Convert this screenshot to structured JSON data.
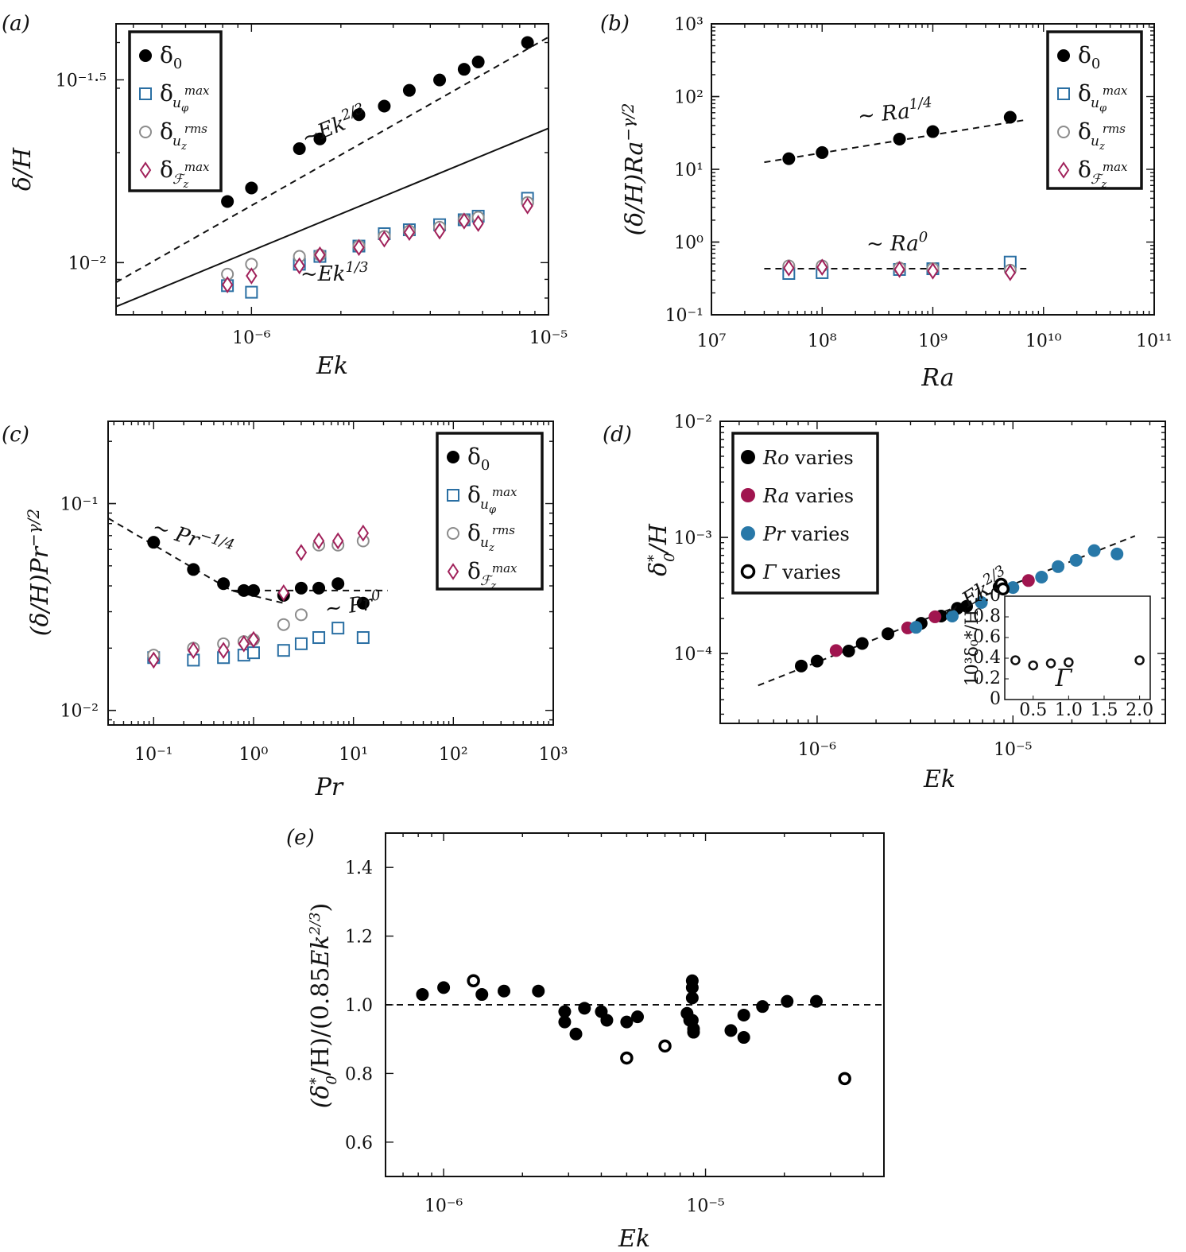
{
  "colors": {
    "black": "#000000",
    "blue": "#2a6fa3",
    "gray": "#8c8c8c",
    "purple": "#a0215a",
    "teal": "#2878a8",
    "crimson": "#a0154f"
  },
  "chart_data": [
    {
      "panel": "(a)",
      "type": "scatter",
      "xscale": "log",
      "yscale": "log",
      "xlabel": "Ek",
      "ylabel": "δ/H",
      "xlim": [
        3.5e-07,
        1e-05
      ],
      "ylim": [
        0.0072,
        0.045
      ],
      "xticks": [
        {
          "v": 1e-06,
          "label": "10⁻⁶"
        },
        {
          "v": 1e-05,
          "label": "10⁻⁵"
        }
      ],
      "yticks": [
        {
          "v": 0.01,
          "label": "10⁻²"
        },
        {
          "v": 0.0316228,
          "label": "10⁻¹·⁵"
        }
      ],
      "legend_position": "top-left",
      "series": [
        {
          "name": "δ0",
          "marker": "filled-circle",
          "color": "#000000",
          "x": [
            8.3e-07,
            1e-06,
            1.45e-06,
            1.7e-06,
            2.3e-06,
            2.8e-06,
            3.4e-06,
            4.3e-06,
            5.2e-06,
            5.8e-06,
            8.5e-06
          ],
          "y": [
            0.0147,
            0.016,
            0.0205,
            0.0218,
            0.0254,
            0.0268,
            0.0296,
            0.0316,
            0.0338,
            0.0354,
            0.04
          ]
        },
        {
          "name": "δ_uφ^max",
          "marker": "square",
          "color": "#2a6fa3",
          "x": [
            8.3e-07,
            1e-06,
            1.45e-06,
            1.7e-06,
            2.3e-06,
            2.8e-06,
            3.4e-06,
            4.3e-06,
            5.2e-06,
            5.8e-06,
            8.5e-06
          ],
          "y": [
            0.00865,
            0.0083,
            0.0099,
            0.0104,
            0.0111,
            0.012,
            0.0123,
            0.0127,
            0.0131,
            0.0134,
            0.015
          ]
        },
        {
          "name": "δ_uz^rms",
          "marker": "open-circle",
          "color": "#8c8c8c",
          "x": [
            8.3e-07,
            1e-06,
            1.45e-06,
            1.7e-06,
            2.3e-06,
            2.8e-06,
            3.4e-06,
            4.3e-06,
            5.2e-06,
            5.8e-06,
            8.5e-06
          ],
          "y": [
            0.0093,
            0.0099,
            0.0104,
            0.0105,
            0.0111,
            0.0118,
            0.0122,
            0.0125,
            0.0131,
            0.0133,
            0.0146
          ]
        },
        {
          "name": "δ_Fz^max",
          "marker": "diamond",
          "color": "#a0215a",
          "x": [
            8.3e-07,
            1e-06,
            1.45e-06,
            1.7e-06,
            2.3e-06,
            2.8e-06,
            3.4e-06,
            4.3e-06,
            5.2e-06,
            5.8e-06,
            8.5e-06
          ],
          "y": [
            0.0087,
            0.0092,
            0.0098,
            0.0105,
            0.011,
            0.0116,
            0.0121,
            0.0122,
            0.013,
            0.0128,
            0.0143
          ]
        }
      ],
      "fits": [
        {
          "label": "~Ek^{2/3}",
          "style": "dashed",
          "x": [
            3.5e-07,
            1e-05
          ],
          "y": [
            0.00883,
            0.0414
          ]
        },
        {
          "label": "~Ek^{1/3}",
          "style": "solid",
          "x": [
            3.5e-07,
            1e-05
          ],
          "y": [
            0.00758,
            0.0233
          ]
        }
      ]
    },
    {
      "panel": "(b)",
      "type": "scatter",
      "xscale": "log",
      "yscale": "log",
      "xlabel": "Ra",
      "ylabel": "(δ/H)Ra^{−γ/2}",
      "xlim": [
        10000000.0,
        100000000000.0
      ],
      "ylim": [
        0.1,
        1000
      ],
      "xticks": [
        {
          "v": 10000000.0,
          "label": "10⁷"
        },
        {
          "v": 100000000.0,
          "label": "10⁸"
        },
        {
          "v": 1000000000.0,
          "label": "10⁹"
        },
        {
          "v": 10000000000.0,
          "label": "10¹⁰"
        },
        {
          "v": 100000000000.0,
          "label": "10¹¹"
        }
      ],
      "yticks": [
        {
          "v": 0.1,
          "label": "10⁻¹"
        },
        {
          "v": 1,
          "label": "10⁰"
        },
        {
          "v": 10,
          "label": "10¹"
        },
        {
          "v": 100,
          "label": "10²"
        },
        {
          "v": 1000,
          "label": "10³"
        }
      ],
      "legend_position": "top-right",
      "series": [
        {
          "name": "δ0",
          "marker": "filled-circle",
          "color": "#000000",
          "x": [
            50000000.0,
            100000000.0,
            500000000.0,
            1000000000.0,
            5000000000.0
          ],
          "y": [
            14,
            17,
            26,
            33,
            52
          ]
        },
        {
          "name": "δ_uφ^max",
          "marker": "square",
          "color": "#2a6fa3",
          "x": [
            50000000.0,
            100000000.0,
            500000000.0,
            1000000000.0,
            5000000000.0
          ],
          "y": [
            0.37,
            0.38,
            0.42,
            0.43,
            0.53
          ]
        },
        {
          "name": "δ_uz^rms",
          "marker": "open-circle",
          "color": "#8c8c8c",
          "x": [
            50000000.0,
            100000000.0,
            500000000.0,
            1000000000.0,
            5000000000.0
          ],
          "y": [
            0.47,
            0.47,
            0.44,
            0.43,
            0.41
          ]
        },
        {
          "name": "δ_Fz^max",
          "marker": "diamond",
          "color": "#a0215a",
          "x": [
            50000000.0,
            100000000.0,
            500000000.0,
            1000000000.0,
            5000000000.0
          ],
          "y": [
            0.44,
            0.45,
            0.42,
            0.4,
            0.38
          ]
        }
      ],
      "fits": [
        {
          "label": "~ Ra^{1/4}",
          "style": "dashed",
          "x": [
            30000000.0,
            7000000000.0
          ],
          "y": [
            12.5,
            48
          ]
        },
        {
          "label": "~ Ra^0",
          "style": "dashed",
          "x": [
            30000000.0,
            7000000000.0
          ],
          "y": [
            0.43,
            0.43
          ]
        }
      ]
    },
    {
      "panel": "(c)",
      "type": "scatter",
      "xscale": "log",
      "yscale": "log",
      "xlabel": "Pr",
      "ylabel": "(δ/H)Pr^{−γ/2}",
      "xlim": [
        0.035,
        1000
      ],
      "ylim": [
        0.0085,
        0.25
      ],
      "xticks": [
        {
          "v": 0.1,
          "label": "10⁻¹"
        },
        {
          "v": 1,
          "label": "10⁰"
        },
        {
          "v": 10,
          "label": "10¹"
        },
        {
          "v": 100,
          "label": "10²"
        },
        {
          "v": 1000,
          "label": "10³"
        }
      ],
      "yticks": [
        {
          "v": 0.01,
          "label": "10⁻²"
        },
        {
          "v": 0.1,
          "label": "10⁻¹"
        }
      ],
      "legend_position": "top-right",
      "series": [
        {
          "name": "δ0",
          "marker": "filled-circle",
          "color": "#000000",
          "x": [
            0.1,
            0.25,
            0.5,
            0.8,
            1.0,
            2.0,
            3.0,
            4.5,
            7.0,
            12.5
          ],
          "y": [
            0.065,
            0.048,
            0.041,
            0.038,
            0.038,
            0.036,
            0.039,
            0.039,
            0.041,
            0.033
          ]
        },
        {
          "name": "δ_uφ^max",
          "marker": "square",
          "color": "#2a6fa3",
          "x": [
            0.1,
            0.25,
            0.5,
            0.8,
            1.0,
            2.0,
            3.0,
            4.5,
            7.0,
            12.5
          ],
          "y": [
            0.018,
            0.0175,
            0.018,
            0.0185,
            0.019,
            0.0195,
            0.021,
            0.0225,
            0.025,
            0.0225
          ]
        },
        {
          "name": "δ_uz^rms",
          "marker": "open-circle",
          "color": "#8c8c8c",
          "x": [
            0.1,
            0.25,
            0.5,
            0.8,
            1.0,
            2.0,
            3.0,
            4.5,
            7.0,
            12.5
          ],
          "y": [
            0.0185,
            0.02,
            0.021,
            0.0215,
            0.022,
            0.026,
            0.029,
            0.063,
            0.063,
            0.066
          ]
        },
        {
          "name": "δ_Fz^max",
          "marker": "diamond",
          "color": "#a0215a",
          "x": [
            0.1,
            0.25,
            0.5,
            0.8,
            1.0,
            2.0,
            3.0,
            4.5,
            7.0,
            12.5
          ],
          "y": [
            0.0175,
            0.0195,
            0.0195,
            0.021,
            0.022,
            0.037,
            0.058,
            0.066,
            0.066,
            0.072
          ]
        }
      ],
      "fits": [
        {
          "label": "~ Pr^{−1/4}",
          "style": "dashed",
          "x": [
            0.035,
            0.6,
            2.0
          ],
          "y": [
            0.085,
            0.038,
            0.033
          ]
        },
        {
          "label": "~ Pr^0",
          "style": "dashed",
          "x": [
            0.6,
            22
          ],
          "y": [
            0.038,
            0.038
          ]
        }
      ]
    },
    {
      "panel": "(d)",
      "type": "scatter",
      "xscale": "log",
      "yscale": "log",
      "xlabel": "Ek",
      "ylabel": "δ0*/H",
      "xlim": [
        3.2e-07,
        6e-05
      ],
      "ylim": [
        2.5e-05,
        0.01
      ],
      "xticks": [
        {
          "v": 1e-06,
          "label": "10⁻⁶"
        },
        {
          "v": 1e-05,
          "label": "10⁻⁵"
        }
      ],
      "yticks": [
        {
          "v": 0.0001,
          "label": "10⁻⁴"
        },
        {
          "v": 0.001,
          "label": "10⁻³"
        },
        {
          "v": 0.01,
          "label": "10⁻²"
        }
      ],
      "legend_position": "top-left",
      "series": [
        {
          "name": "Ro varies",
          "marker": "filled-circle",
          "color": "#000000",
          "x": [
            8.3e-07,
            1e-06,
            1.45e-06,
            1.7e-06,
            2.3e-06,
            3.4e-06,
            4.3e-06,
            5.2e-06,
            5.8e-06,
            8.5e-06
          ],
          "y": [
            7.8e-05,
            8.6e-05,
            0.000105,
            0.000122,
            0.000148,
            0.000182,
            0.00021,
            0.000245,
            0.000255,
            0.000375
          ]
        },
        {
          "name": "Ra varies",
          "marker": "filled-circle",
          "color": "#a0154f",
          "x": [
            1.25e-06,
            2.9e-06,
            4e-06,
            1.2e-05
          ],
          "y": [
            0.000106,
            0.000166,
            0.000207,
            0.000425
          ]
        },
        {
          "name": "Pr varies",
          "marker": "filled-circle",
          "color": "#2878a8",
          "x": [
            3.2e-06,
            4.9e-06,
            6.9e-06,
            1e-05,
            1.4e-05,
            1.7e-05,
            2.1e-05,
            2.6e-05,
            3.4e-05
          ],
          "y": [
            0.000168,
            0.00021,
            0.000275,
            0.00037,
            0.000455,
            0.00056,
            0.000635,
            0.00077,
            0.00072
          ]
        },
        {
          "name": "Γ varies",
          "marker": "open-circle-thick",
          "color": "#000000",
          "x": [
            8.7e-06,
            8.9e-06
          ],
          "y": [
            0.000395,
            0.00036
          ]
        }
      ],
      "fits": [
        {
          "label": "~ Ek^{2/3}",
          "style": "dashed",
          "x": [
            5e-07,
            4.2e-05
          ],
          "y": [
            5.3e-05,
            0.00103
          ]
        }
      ],
      "inset": {
        "type": "scatter",
        "xlabel": "Γ",
        "ylabel": "10³δ0*/H",
        "xlim": [
          0.1,
          2.15
        ],
        "ylim": [
          0,
          1.0
        ],
        "xticks": [
          {
            "v": 0.5,
            "label": "0.5"
          },
          {
            "v": 1.0,
            "label": "1.0"
          },
          {
            "v": 1.5,
            "label": "1.5"
          },
          {
            "v": 2.0,
            "label": "2.0"
          }
        ],
        "xticks_extra": [
          {
            "v": 0.25,
            "label": "0"
          }
        ],
        "yticks": [
          {
            "v": 0,
            "label": "0"
          },
          {
            "v": 0.2,
            "label": "0.2"
          },
          {
            "v": 0.4,
            "label": "0.4"
          },
          {
            "v": 0.6,
            "label": "0.6"
          },
          {
            "v": 0.8,
            "label": "0.8"
          },
          {
            "v": 1.0,
            "label": "1.0"
          }
        ],
        "x": [
          0.25,
          0.5,
          0.75,
          1.0,
          2.0
        ],
        "y": [
          0.38,
          0.33,
          0.35,
          0.36,
          0.38
        ]
      }
    },
    {
      "panel": "(e)",
      "type": "scatter",
      "xscale": "log",
      "yscale": "linear",
      "xlabel": "Ek",
      "ylabel": "(δ0*/H)/(0.85Ek^{2/3})",
      "xlim": [
        6e-07,
        4.8e-05
      ],
      "ylim": [
        0.5,
        1.5
      ],
      "xticks": [
        {
          "v": 1e-06,
          "label": "10⁻⁶"
        },
        {
          "v": 1e-05,
          "label": "10⁻⁵"
        }
      ],
      "yticks": [
        {
          "v": 0.6,
          "label": "0.6"
        },
        {
          "v": 0.8,
          "label": "0.8"
        },
        {
          "v": 1.0,
          "label": "1.0"
        },
        {
          "v": 1.2,
          "label": "1.2"
        },
        {
          "v": 1.4,
          "label": "1.4"
        }
      ],
      "reference_line": 1.0,
      "series": [
        {
          "name": "filled",
          "marker": "filled-circle",
          "color": "#000000",
          "x": [
            8.3e-07,
            1e-06,
            1.4e-06,
            1.7e-06,
            2.3e-06,
            2.9e-06,
            2.9e-06,
            3.2e-06,
            3.45e-06,
            4e-06,
            4.2e-06,
            5e-06,
            5.5e-06,
            8.5e-06,
            8.7e-06,
            8.9e-06,
            8.9e-06,
            8.9e-06,
            8.9e-06,
            9e-06,
            9e-06,
            1.25e-05,
            1.4e-05,
            1.4e-05,
            1.65e-05,
            2.05e-05,
            2.65e-05
          ],
          "y": [
            1.03,
            1.05,
            1.03,
            1.04,
            1.04,
            0.98,
            0.95,
            0.915,
            0.99,
            0.98,
            0.955,
            0.95,
            0.965,
            0.975,
            0.955,
            1.07,
            1.05,
            1.02,
            0.955,
            0.93,
            0.92,
            0.925,
            0.97,
            0.905,
            0.995,
            1.01,
            1.01
          ]
        },
        {
          "name": "open",
          "marker": "open-circle-thick",
          "color": "#000000",
          "x": [
            1.3e-06,
            5e-06,
            7e-06,
            3.4e-05
          ],
          "y": [
            1.07,
            0.845,
            0.88,
            0.785
          ]
        }
      ]
    }
  ],
  "panel_labels": {
    "a": "(a)",
    "b": "(b)",
    "c": "(c)",
    "d": "(d)",
    "e": "(e)"
  },
  "axis_labels": {
    "a_x": "Ek",
    "a_y": "δ/H",
    "b_x": "Ra",
    "b_y": "(δ/H)Ra",
    "b_y_sup": "−γ/2",
    "c_x": "Pr",
    "c_y": "(δ/H)Pr",
    "c_y_sup": "−γ/2",
    "d_x": "Ek",
    "d_y": "δ",
    "e_x": "Ek",
    "e_y": "(δ",
    "inset_x": "Γ"
  },
  "legends": {
    "abc": [
      "δ",
      "δ",
      "δ",
      "δ"
    ],
    "d": [
      "Ro varies",
      "Ra varies",
      "Pr varies",
      "Γ varies"
    ]
  },
  "annotations": {
    "a_fit1": "~Ek",
    "a_fit1_sup": "2/3",
    "a_fit2": "~Ek",
    "a_fit2_sup": "1/3",
    "b_fit1": "~ Ra",
    "b_fit1_sup": "1/4",
    "b_fit2": "~ Ra",
    "b_fit2_sup": "0",
    "c_fit1": "~ Pr",
    "c_fit1_sup": "−1/4",
    "c_fit2": "~ Pr",
    "c_fit2_sup": "0",
    "d_fit1": "~ Ek",
    "d_fit1_sup": "2/3"
  }
}
